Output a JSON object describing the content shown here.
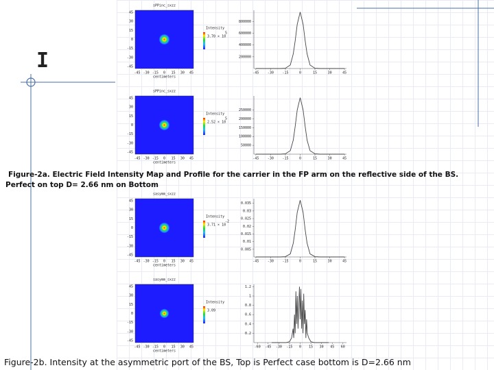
{
  "slide_mark": "I",
  "panels": [
    {
      "map": {
        "title": "sPPinc_sxzz",
        "yticks": [
          45,
          30,
          15,
          0,
          -15,
          -30,
          -45
        ],
        "xticks": [
          -45,
          -30,
          -15,
          0,
          15,
          30,
          45
        ],
        "xlabel": "centimeters",
        "legend_title": "Intensity",
        "scale": "3.70 × 10",
        "exponent": "5"
      },
      "profile": {
        "type": "line",
        "xlim": [
          -47,
          47
        ],
        "xticks": [
          -45,
          -30,
          -15,
          0,
          15,
          30,
          45
        ],
        "ylim": [
          0,
          990000
        ],
        "yticks": [
          200000,
          400000,
          600000,
          800000
        ],
        "x": [
          -45,
          -30,
          -20,
          -15,
          -10,
          -7,
          -5,
          -3,
          0,
          3,
          5,
          7,
          10,
          15,
          20,
          30,
          45
        ],
        "values": [
          0,
          0,
          0,
          5000,
          60000,
          250000,
          480000,
          750000,
          960000,
          750000,
          480000,
          250000,
          60000,
          5000,
          0,
          0,
          0
        ]
      }
    },
    {
      "map": {
        "title": "sPPinc_sxzz",
        "yticks": [
          45,
          30,
          15,
          0,
          -15,
          -30,
          -45
        ],
        "xticks": [
          -45,
          -30,
          -15,
          0,
          15,
          30,
          45
        ],
        "xlabel": "centimeters",
        "legend_title": "Intensity",
        "scale": "2.52 × 10",
        "exponent": "5"
      },
      "profile": {
        "type": "line",
        "xlim": [
          -47,
          47
        ],
        "xticks": [
          -45,
          -30,
          -15,
          0,
          15,
          30,
          45
        ],
        "ylim": [
          0,
          330000
        ],
        "yticks": [
          50000,
          100000,
          150000,
          200000,
          250000
        ],
        "x": [
          -45,
          -30,
          -20,
          -15,
          -10,
          -7,
          -5,
          -3,
          0,
          3,
          5,
          7,
          10,
          15,
          20,
          30,
          45
        ],
        "values": [
          0,
          0,
          0,
          2000,
          20000,
          80000,
          160000,
          250000,
          320000,
          250000,
          160000,
          80000,
          20000,
          2000,
          0,
          0,
          0
        ]
      }
    },
    {
      "map": {
        "title": "sasymm_sxzz",
        "yticks": [
          45,
          30,
          15,
          0,
          -15,
          -30,
          -45
        ],
        "xticks": [
          -45,
          -30,
          -15,
          0,
          15,
          30,
          45
        ],
        "xlabel": "centimeters",
        "legend_title": "Intensity",
        "scale": "3.71 × 10",
        "exponent": "-2"
      },
      "profile": {
        "type": "line",
        "xlim": [
          -47,
          47
        ],
        "xticks": [
          -45,
          -30,
          -15,
          0,
          15,
          30,
          45
        ],
        "ylim": [
          0,
          0.038
        ],
        "yticks": [
          0.005,
          0.01,
          0.015,
          0.02,
          0.025,
          0.03,
          0.035
        ],
        "x": [
          -45,
          -30,
          -20,
          -15,
          -10,
          -7,
          -5,
          -3,
          0,
          3,
          5,
          7,
          10,
          15,
          20,
          30,
          45
        ],
        "values": [
          0,
          0,
          0,
          0.0002,
          0.002,
          0.009,
          0.018,
          0.029,
          0.037,
          0.029,
          0.018,
          0.009,
          0.002,
          0.0002,
          0,
          0,
          0
        ]
      }
    },
    {
      "map": {
        "title": "sasymm_sxzz",
        "yticks": [
          45,
          30,
          15,
          0,
          -15,
          -30,
          -45
        ],
        "xticks": [
          -45,
          -30,
          -15,
          0,
          15,
          30,
          45
        ],
        "xlabel": "centimeters",
        "legend_title": "Intensity",
        "scale": "3.09"
      },
      "profile": {
        "type": "line",
        "xlim": [
          -65,
          65
        ],
        "xticks": [
          -60,
          -45,
          -30,
          -15,
          0,
          15,
          30,
          45,
          60
        ],
        "ylim": [
          0,
          1.25
        ],
        "yticks": [
          0.2,
          0.4,
          0.6,
          0.8,
          1,
          1.2
        ],
        "x": [
          -40,
          -20,
          -15,
          -12,
          -10,
          -9,
          -8,
          -7,
          -6,
          -5,
          -4,
          -3,
          -2,
          -1,
          0,
          1,
          2,
          3,
          4,
          5,
          6,
          7,
          8,
          9,
          10,
          12,
          15,
          20,
          40
        ],
        "values": [
          0,
          0,
          0.02,
          0.1,
          0.3,
          0.1,
          0.6,
          0.2,
          1.1,
          0.4,
          1.0,
          0.3,
          0.8,
          1.2,
          0.5,
          1.15,
          0.3,
          0.9,
          0.2,
          1.05,
          0.4,
          0.7,
          0.1,
          0.5,
          0.2,
          0.1,
          0.02,
          0,
          0
        ]
      }
    }
  ],
  "caption_a": {
    "line1": "Figure-2a. Electric Field Intensity Map and Profile for the carrier in the FP arm on the reflective side of the BS.",
    "line2": "Perfect on top D= 2.66 nm on Bottom"
  },
  "caption_b": "Figure-2b. Intensity at the asymmetric port of the BS, Top is Perfect case bottom is D=2.66 nm"
}
